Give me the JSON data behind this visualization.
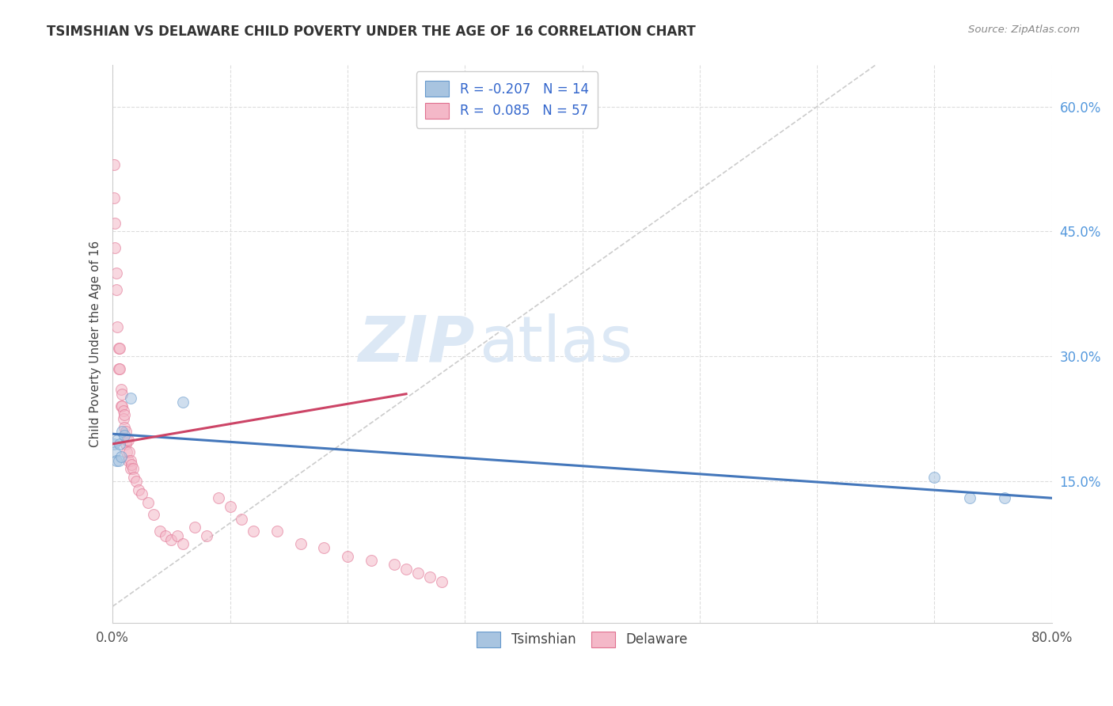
{
  "title": "TSIMSHIAN VS DELAWARE CHILD POVERTY UNDER THE AGE OF 16 CORRELATION CHART",
  "source": "Source: ZipAtlas.com",
  "ylabel": "Child Poverty Under the Age of 16",
  "xlim": [
    0.0,
    0.8
  ],
  "ylim": [
    -0.02,
    0.65
  ],
  "xticks": [
    0.0,
    0.1,
    0.2,
    0.3,
    0.4,
    0.5,
    0.6,
    0.7,
    0.8
  ],
  "ytick_positions": [
    0.15,
    0.3,
    0.45,
    0.6
  ],
  "tsimshian_color": "#a8c4e0",
  "delaware_color": "#f4b8c8",
  "tsimshian_edge": "#6699cc",
  "delaware_edge": "#e07090",
  "tsimshian_R": -0.207,
  "tsimshian_N": 14,
  "delaware_R": 0.085,
  "delaware_N": 57,
  "tsimshian_line_color": "#4477bb",
  "delaware_line_color": "#cc4466",
  "diagonal_color": "#cccccc",
  "watermark_color": "#dce8f5",
  "tsimshian_x": [
    0.001,
    0.002,
    0.003,
    0.004,
    0.005,
    0.006,
    0.007,
    0.008,
    0.01,
    0.015,
    0.06,
    0.7,
    0.73,
    0.76
  ],
  "tsimshian_y": [
    0.195,
    0.185,
    0.175,
    0.2,
    0.175,
    0.195,
    0.18,
    0.21,
    0.205,
    0.25,
    0.245,
    0.155,
    0.13,
    0.13
  ],
  "delaware_x": [
    0.001,
    0.001,
    0.002,
    0.002,
    0.003,
    0.003,
    0.004,
    0.005,
    0.005,
    0.006,
    0.006,
    0.007,
    0.007,
    0.008,
    0.008,
    0.009,
    0.009,
    0.01,
    0.01,
    0.011,
    0.011,
    0.012,
    0.012,
    0.013,
    0.013,
    0.014,
    0.015,
    0.015,
    0.016,
    0.017,
    0.018,
    0.02,
    0.022,
    0.025,
    0.03,
    0.035,
    0.04,
    0.045,
    0.05,
    0.055,
    0.06,
    0.07,
    0.08,
    0.09,
    0.1,
    0.11,
    0.12,
    0.14,
    0.16,
    0.18,
    0.2,
    0.22,
    0.24,
    0.25,
    0.26,
    0.27,
    0.28
  ],
  "delaware_y": [
    0.53,
    0.49,
    0.46,
    0.43,
    0.4,
    0.38,
    0.335,
    0.31,
    0.285,
    0.31,
    0.285,
    0.26,
    0.24,
    0.255,
    0.24,
    0.235,
    0.225,
    0.23,
    0.215,
    0.21,
    0.195,
    0.2,
    0.185,
    0.2,
    0.175,
    0.185,
    0.175,
    0.165,
    0.17,
    0.165,
    0.155,
    0.15,
    0.14,
    0.135,
    0.125,
    0.11,
    0.09,
    0.085,
    0.08,
    0.085,
    0.075,
    0.095,
    0.085,
    0.13,
    0.12,
    0.105,
    0.09,
    0.09,
    0.075,
    0.07,
    0.06,
    0.055,
    0.05,
    0.045,
    0.04,
    0.035,
    0.03
  ],
  "tsimshian_line_x0": 0.0,
  "tsimshian_line_y0": 0.207,
  "tsimshian_line_x1": 0.8,
  "tsimshian_line_y1": 0.13,
  "delaware_line_x0": 0.0,
  "delaware_line_y0": 0.195,
  "delaware_line_x1": 0.25,
  "delaware_line_y1": 0.255,
  "marker_size": 100,
  "marker_alpha": 0.55,
  "grid_color": "#dddddd",
  "grid_style": "--",
  "background_color": "#ffffff"
}
